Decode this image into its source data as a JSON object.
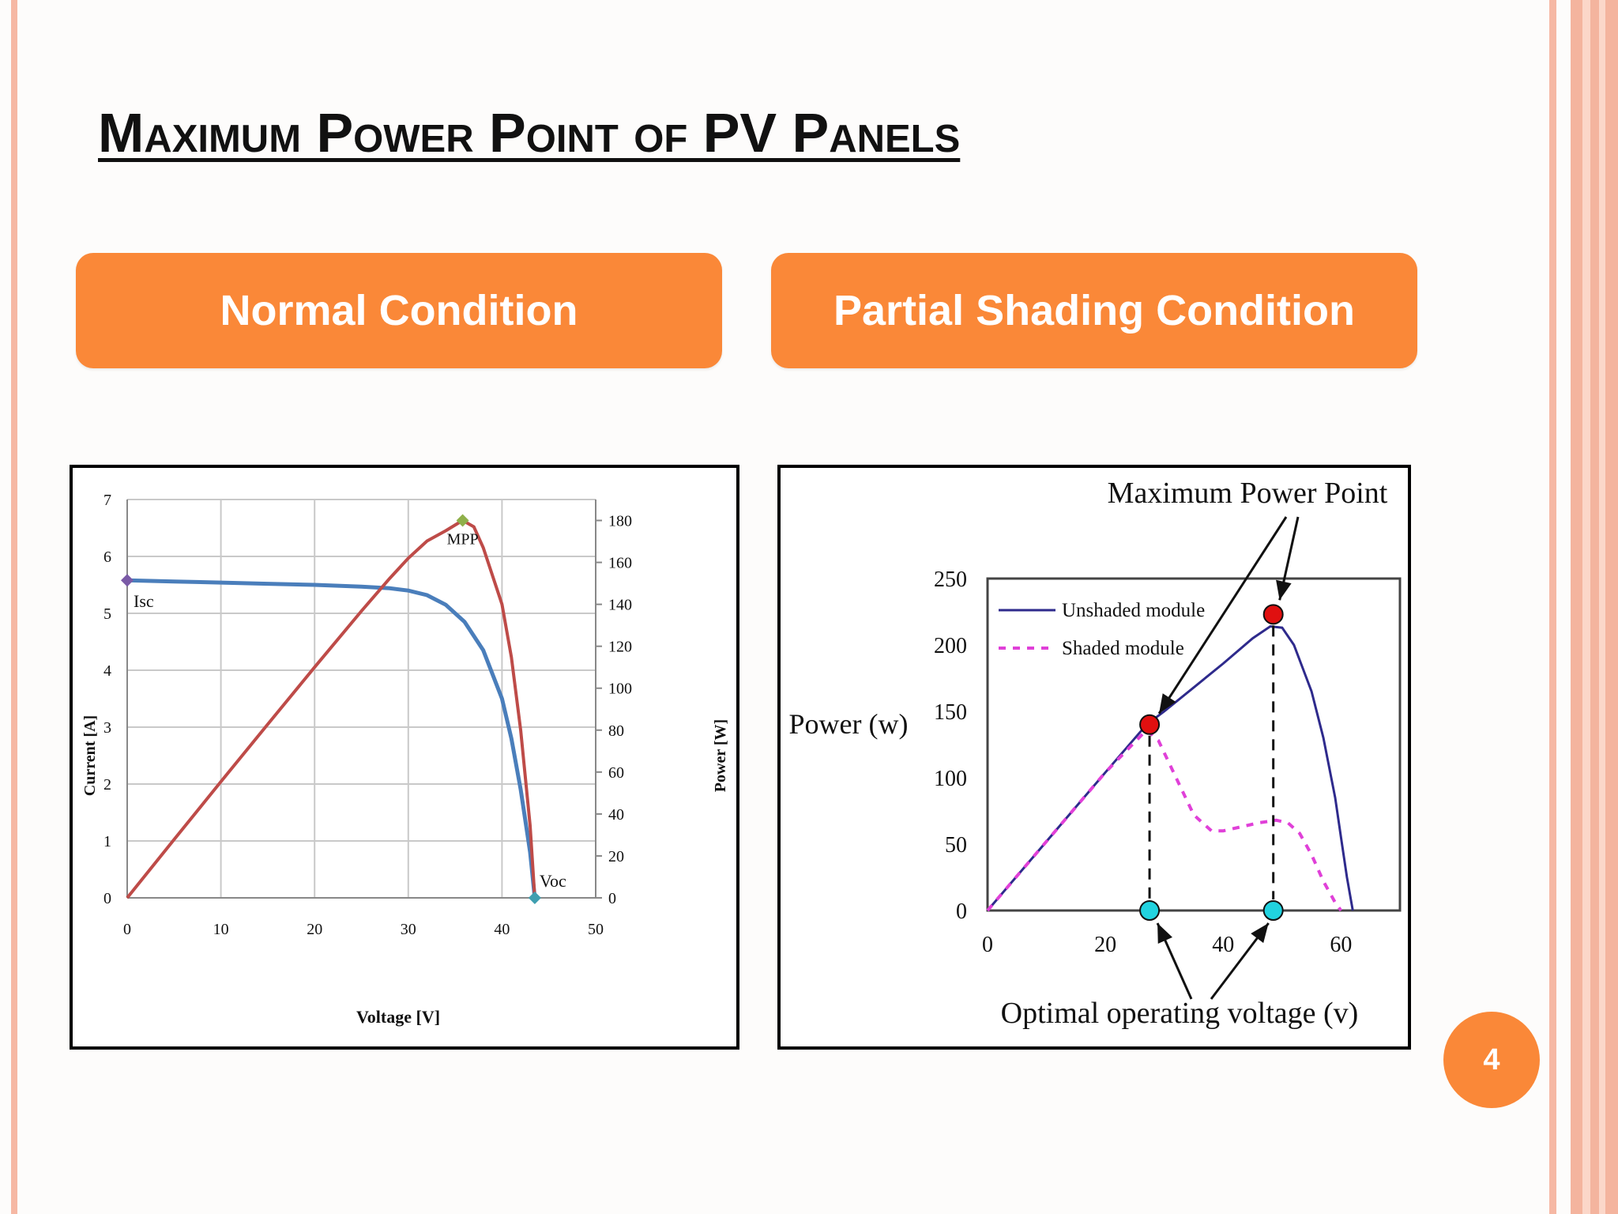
{
  "slide": {
    "title": "Maximum Power Point of PV Panels",
    "number": "4"
  },
  "panels": [
    {
      "heading": "Normal Condition"
    },
    {
      "heading": "Partial Shading Condition"
    }
  ],
  "colors": {
    "accent": "#fa8838",
    "frame": "#f6b8a4",
    "current_curve": "#4a7ebb",
    "power_curve": "#be4b48",
    "unshaded_curve": "#2e2a8c",
    "shaded_curve": "#e040d8",
    "mpp_marker": "#e01010",
    "voltage_marker": "#21d3e0"
  },
  "chart_data": [
    {
      "type": "line",
      "title": "",
      "xlabel": "Voltage [V]",
      "ylabel": "Current [A]",
      "y2label": "Power [W]",
      "xlim": [
        0,
        50
      ],
      "ylim": [
        0,
        7
      ],
      "y2lim": [
        0,
        190
      ],
      "x_ticks": [
        0,
        10,
        20,
        30,
        40,
        50
      ],
      "y_ticks": [
        0,
        1,
        2,
        3,
        4,
        5,
        6,
        7
      ],
      "y2_ticks": [
        0,
        20,
        40,
        60,
        80,
        100,
        120,
        140,
        160,
        180
      ],
      "grid": true,
      "series": [
        {
          "axis": "left",
          "x": [
            0,
            5,
            10,
            15,
            20,
            25,
            28,
            30,
            32,
            34,
            36,
            38,
            40,
            41,
            42,
            43,
            43.5
          ],
          "y": [
            5.58,
            5.56,
            5.54,
            5.52,
            5.5,
            5.47,
            5.44,
            5.4,
            5.32,
            5.15,
            4.85,
            4.35,
            3.5,
            2.8,
            1.9,
            0.8,
            0
          ]
        },
        {
          "axis": "right",
          "x": [
            0,
            5,
            10,
            15,
            20,
            25,
            28,
            30,
            32,
            34,
            35.8,
            37,
            38,
            40,
            41,
            42,
            43,
            43.5
          ],
          "y": [
            0,
            27.8,
            55.4,
            82.8,
            110,
            136.8,
            152.3,
            162,
            170.2,
            175.1,
            180,
            177,
            167,
            140,
            114.8,
            79.8,
            34.4,
            0
          ]
        }
      ],
      "annotations": [
        {
          "label": "MPP",
          "x": 35.8,
          "y2": 180
        },
        {
          "label": "Isc",
          "x": 0,
          "y": 5.58
        },
        {
          "label": "Voc",
          "x": 43.5,
          "y": 0
        }
      ]
    },
    {
      "type": "line",
      "title": "",
      "ylabel": "Power (w)",
      "xlim": [
        0,
        70
      ],
      "ylim": [
        0,
        250
      ],
      "x_ticks": [
        0,
        20,
        40,
        60
      ],
      "y_ticks": [
        0,
        50,
        100,
        150,
        200,
        250
      ],
      "grid": false,
      "legend_position": "top-left",
      "series": [
        {
          "name": "Unshaded module",
          "x": [
            0,
            10,
            20,
            27,
            30,
            35,
            40,
            45,
            48,
            50,
            52,
            55,
            57,
            59,
            60,
            61,
            62
          ],
          "y": [
            0,
            52,
            104,
            140,
            150,
            168,
            186,
            205,
            214,
            213,
            200,
            165,
            130,
            85,
            55,
            25,
            0
          ]
        },
        {
          "name": "Shaded module",
          "x": [
            0,
            10,
            20,
            27,
            29,
            32,
            35,
            38,
            40,
            43,
            46,
            49,
            51,
            53,
            55,
            57,
            59,
            60
          ],
          "y": [
            0,
            52,
            104,
            136,
            128,
            100,
            72,
            60,
            60,
            63,
            66,
            68,
            66,
            58,
            42,
            22,
            6,
            0
          ]
        }
      ],
      "markers": [
        {
          "x": 27.5,
          "y": 140
        },
        {
          "x": 48.5,
          "y": 223
        },
        {
          "x": 27.5,
          "y": 0
        },
        {
          "x": 48.5,
          "y": 0
        }
      ],
      "annotations": [
        {
          "label": "Maximum Power Point"
        },
        {
          "label": "Optimal operating voltage (v)"
        }
      ]
    }
  ]
}
